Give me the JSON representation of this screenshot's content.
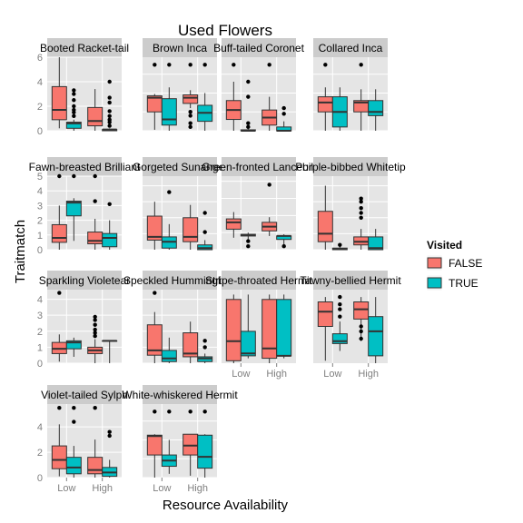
{
  "chart_data": {
    "type": "boxplot",
    "title": "Used Flowers",
    "xlabel": "Resource Availability",
    "ylabel": "Traitmatch",
    "categories": [
      "Low",
      "High"
    ],
    "legend": {
      "title": "Visited",
      "placement": "right",
      "entries": [
        {
          "label": "FALSE",
          "color": "#F8766D"
        },
        {
          "label": "TRUE",
          "color": "#00BFC4"
        }
      ]
    },
    "colors": {
      "FALSE": "#F8766D",
      "TRUE": "#00BFC4",
      "panel_bg": "#E5E5E5",
      "strip_bg": "#CCCCCC",
      "grid": "#FFFFFF"
    },
    "panels": [
      {
        "name": "Booted Racket-tail",
        "ylim": [
          0,
          6
        ],
        "yticks": [
          0,
          2,
          4,
          6
        ],
        "boxes": {
          "Low": {
            "FALSE": [
              0.2,
              0.9,
              1.7,
              3.6,
              6.0
            ],
            "TRUE": [
              0.0,
              0.2,
              0.6,
              0.7,
              0.9
            ]
          },
          "High": {
            "FALSE": [
              0.0,
              0.4,
              0.8,
              1.9,
              3.4
            ],
            "TRUE": [
              0.0,
              0.0,
              0.1,
              0.1,
              0.2
            ]
          }
        },
        "outliers": {
          "Low": {
            "FALSE": [],
            "TRUE": [
              1.2,
              1.5,
              1.7,
              2.0,
              2.5,
              3.0,
              3.3
            ]
          },
          "High": {
            "FALSE": [],
            "TRUE": [
              0.4,
              0.7,
              0.9,
              1.2,
              1.6,
              2.3,
              2.7,
              4.0
            ]
          }
        }
      },
      {
        "name": "Brown Inca",
        "ylim": [
          0,
          3.9
        ],
        "yticks": [
          0,
          1,
          2,
          3
        ],
        "boxes": {
          "Low": {
            "FALSE": [
              0.05,
              1.0,
              1.75,
              1.85,
              1.95
            ],
            "TRUE": [
              0.0,
              0.3,
              0.6,
              1.7,
              2.3
            ]
          },
          "High": {
            "FALSE": [
              1.2,
              1.45,
              1.75,
              1.9,
              2.15
            ],
            "TRUE": [
              0.0,
              0.5,
              0.95,
              1.35,
              2.0
            ]
          }
        },
        "outliers": {
          "Low": {
            "FALSE": [
              3.5
            ],
            "TRUE": [
              3.5
            ]
          },
          "High": {
            "FALSE": [
              0.2,
              0.4,
              0.8,
              1.0,
              3.5
            ],
            "TRUE": [
              3.5
            ]
          }
        }
      },
      {
        "name": "Buff-tailed Coronet",
        "ylim": [
          0,
          3.9
        ],
        "yticks": [
          0,
          1,
          2,
          3
        ],
        "boxes": {
          "Low": {
            "FALSE": [
              0.0,
              0.6,
              1.1,
              1.6,
              2.6
            ],
            "TRUE": [
              0.0,
              0.0,
              0.0,
              0.05,
              0.1
            ]
          },
          "High": {
            "FALSE": [
              0.0,
              0.3,
              0.7,
              1.1,
              1.8
            ],
            "TRUE": [
              0.0,
              0.0,
              0.0,
              0.2,
              0.5
            ]
          }
        },
        "outliers": {
          "Low": {
            "FALSE": [
              3.5
            ],
            "TRUE": [
              0.2,
              0.4,
              1.8,
              2.6
            ]
          },
          "High": {
            "FALSE": [
              3.5
            ],
            "TRUE": [
              0.9,
              1.2
            ]
          }
        }
      },
      {
        "name": "Collared Inca",
        "ylim": [
          0,
          3.9
        ],
        "yticks": [
          0,
          1,
          2,
          3
        ],
        "boxes": {
          "Low": {
            "FALSE": [
              0.0,
              1.0,
              1.5,
              1.8,
              2.3
            ],
            "TRUE": [
              0.0,
              0.2,
              1.0,
              1.8,
              2.3
            ]
          },
          "High": {
            "FALSE": [
              0.0,
              1.0,
              1.5,
              1.6,
              2.2
            ],
            "TRUE": [
              0.0,
              0.8,
              1.0,
              1.6,
              2.2
            ]
          }
        },
        "outliers": {
          "Low": {
            "FALSE": [
              3.5
            ],
            "TRUE": []
          },
          "High": {
            "FALSE": [
              3.5
            ],
            "TRUE": []
          }
        }
      },
      {
        "name": "Fawn-breasted Brilliant",
        "ylim": [
          0,
          5
        ],
        "yticks": [
          0,
          1,
          2,
          3,
          4,
          5
        ],
        "boxes": {
          "Low": {
            "FALSE": [
              0.0,
              0.5,
              0.8,
              1.7,
              3.0
            ],
            "TRUE": [
              0.6,
              2.3,
              3.2,
              3.3,
              3.5
            ]
          },
          "High": {
            "FALSE": [
              0.0,
              0.4,
              0.6,
              1.2,
              2.1
            ],
            "TRUE": [
              0.0,
              0.2,
              0.8,
              1.1,
              2.0
            ]
          }
        },
        "outliers": {
          "Low": {
            "FALSE": [
              5.0
            ],
            "TRUE": [
              5.0
            ]
          },
          "High": {
            "FALSE": [
              3.3,
              5.0
            ],
            "TRUE": [
              3.1
            ]
          }
        }
      },
      {
        "name": "Gorgeted Sunangel",
        "ylim": [
          0,
          4.6
        ],
        "yticks": [
          0,
          1,
          2,
          3,
          4
        ],
        "boxes": {
          "Low": {
            "FALSE": [
              0.0,
              0.6,
              0.8,
              2.1,
              3.0
            ],
            "TRUE": [
              0.0,
              0.1,
              0.5,
              0.8,
              1.6
            ]
          },
          "High": {
            "FALSE": [
              0.0,
              0.5,
              0.8,
              2.0,
              2.8
            ],
            "TRUE": [
              0.0,
              0.0,
              0.1,
              0.3,
              0.6
            ]
          }
        },
        "outliers": {
          "Low": {
            "FALSE": [],
            "TRUE": [
              3.6
            ]
          },
          "High": {
            "FALSE": [],
            "TRUE": [
              1.1,
              2.3
            ]
          }
        }
      },
      {
        "name": "Green-fronted Lancebill",
        "ylim": [
          0,
          4.3
        ],
        "yticks": [
          0,
          1,
          2,
          3,
          4
        ],
        "boxes": {
          "Low": {
            "FALSE": [
              0.7,
              1.2,
              1.6,
              1.8,
              2.2
            ],
            "TRUE": [
              0.6,
              0.8,
              0.85,
              0.9,
              1.0
            ]
          },
          "High": {
            "FALSE": [
              0.8,
              1.1,
              1.35,
              1.6,
              1.9
            ],
            "TRUE": [
              0.2,
              0.6,
              0.8,
              0.8,
              0.9
            ]
          }
        },
        "outliers": {
          "Low": {
            "FALSE": [],
            "TRUE": [
              0.2,
              0.5
            ]
          },
          "High": {
            "FALSE": [
              3.8
            ],
            "TRUE": [
              0.2
            ]
          }
        }
      },
      {
        "name": "Purple-bibbed Whitetip",
        "ylim": [
          0,
          4.6
        ],
        "yticks": [
          0,
          1,
          2,
          3,
          4
        ],
        "boxes": {
          "Low": {
            "FALSE": [
              0.0,
              0.5,
              1.0,
              2.4,
              4.0
            ],
            "TRUE": [
              0.0,
              0.0,
              0.05,
              0.1,
              0.2
            ]
          },
          "High": {
            "FALSE": [
              0.0,
              0.3,
              0.5,
              0.8,
              1.3
            ],
            "TRUE": [
              0.0,
              0.0,
              0.1,
              0.8,
              1.3
            ]
          }
        },
        "outliers": {
          "Low": {
            "FALSE": [],
            "TRUE": [
              0.3
            ]
          },
          "High": {
            "FALSE": [
              2.0,
              2.3,
              2.6,
              3.0,
              3.2
            ],
            "TRUE": []
          }
        }
      },
      {
        "name": "Sparkling Violetear",
        "ylim": [
          0,
          4.6
        ],
        "yticks": [
          0,
          1,
          2,
          3,
          4
        ],
        "boxes": {
          "Low": {
            "FALSE": [
              0.1,
              0.6,
              0.9,
              1.3,
              1.8
            ],
            "TRUE": [
              0.4,
              0.9,
              1.3,
              1.4,
              1.6
            ]
          },
          "High": {
            "FALSE": [
              0.0,
              0.6,
              0.8,
              1.0,
              1.5
            ],
            "TRUE": [
              0.0,
              1.4,
              1.4,
              1.4,
              1.4
            ]
          }
        },
        "outliers": {
          "Low": {
            "FALSE": [
              4.4
            ],
            "TRUE": []
          },
          "High": {
            "FALSE": [
              1.7,
              1.9,
              2.1,
              2.4,
              2.7,
              2.9
            ],
            "TRUE": []
          }
        }
      },
      {
        "name": "Speckled Hummingbird",
        "ylim": [
          0,
          4.6
        ],
        "yticks": [
          0,
          1,
          2,
          3,
          4
        ],
        "boxes": {
          "Low": {
            "FALSE": [
              0.0,
              0.5,
              0.8,
              2.4,
              3.2
            ],
            "TRUE": [
              0.0,
              0.1,
              0.3,
              0.8,
              1.6
            ]
          },
          "High": {
            "FALSE": [
              0.0,
              0.4,
              0.6,
              1.9,
              2.6
            ],
            "TRUE": [
              0.0,
              0.1,
              0.3,
              0.4,
              0.6
            ]
          }
        },
        "outliers": {
          "Low": {
            "FALSE": [
              4.4
            ],
            "TRUE": []
          },
          "High": {
            "FALSE": [],
            "TRUE": [
              1.0,
              1.4
            ]
          }
        }
      },
      {
        "name": "Stripe-throated Hermit",
        "ylim": [
          0,
          3.0
        ],
        "yticks": [],
        "boxes": {
          "Low": {
            "FALSE": [
              0.0,
              0.1,
              0.9,
              2.6,
              2.8
            ],
            "TRUE": [
              0.2,
              0.3,
              0.4,
              1.3,
              2.8
            ]
          },
          "High": {
            "FALSE": [
              0.0,
              0.2,
              0.6,
              2.6,
              2.8
            ],
            "TRUE": [
              0.2,
              0.3,
              0.3,
              2.6,
              2.8
            ]
          }
        },
        "outliers": {
          "Low": {
            "FALSE": [],
            "TRUE": []
          },
          "High": {
            "FALSE": [],
            "TRUE": []
          }
        }
      },
      {
        "name": "Tawny-bellied Hermit",
        "ylim": [
          0,
          3.0
        ],
        "yticks": [],
        "boxes": {
          "Low": {
            "FALSE": [
              0.1,
              1.5,
              2.1,
              2.5,
              2.7
            ],
            "TRUE": [
              0.5,
              0.8,
              0.9,
              1.2,
              1.7
            ]
          },
          "High": {
            "FALSE": [
              0.9,
              1.8,
              2.2,
              2.5,
              2.7
            ],
            "TRUE": [
              0.0,
              0.3,
              1.3,
              1.9,
              2.7
            ]
          }
        },
        "outliers": {
          "Low": {
            "FALSE": [],
            "TRUE": [
              1.9,
              2.2,
              2.4,
              2.7
            ]
          },
          "High": {
            "FALSE": [
              1.0,
              1.3,
              1.5
            ],
            "TRUE": []
          }
        }
      },
      {
        "name": "Violet-tailed Sylph",
        "ylim": [
          0,
          5.8
        ],
        "yticks": [
          0,
          2,
          4
        ],
        "boxes": {
          "Low": {
            "FALSE": [
              0.1,
              0.7,
              1.4,
              2.5,
              4.2
            ],
            "TRUE": [
              0.0,
              0.3,
              0.8,
              1.6,
              2.5
            ]
          },
          "High": {
            "FALSE": [
              0.0,
              0.3,
              0.6,
              1.6,
              3.0
            ],
            "TRUE": [
              0.0,
              0.1,
              0.4,
              0.8,
              1.4
            ]
          }
        },
        "outliers": {
          "Low": {
            "FALSE": [
              5.5
            ],
            "TRUE": [
              4.4,
              5.5
            ]
          },
          "High": {
            "FALSE": [
              5.5
            ],
            "TRUE": [
              3.3,
              3.6
            ]
          }
        }
      },
      {
        "name": "White-whiskered Hermit",
        "ylim": [
          0,
          3.9
        ],
        "yticks": [
          0,
          1,
          2,
          3
        ],
        "boxes": {
          "Low": {
            "FALSE": [
              0.0,
              1.2,
              2.2,
              2.25,
              2.3
            ],
            "TRUE": [
              0.2,
              0.6,
              0.9,
              1.2,
              2.0
            ]
          },
          "High": {
            "FALSE": [
              0.1,
              1.2,
              1.7,
              2.3,
              2.3
            ],
            "TRUE": [
              0.0,
              0.5,
              1.1,
              2.25,
              2.3
            ]
          }
        },
        "outliers": {
          "Low": {
            "FALSE": [
              3.5
            ],
            "TRUE": [
              3.5
            ]
          },
          "High": {
            "FALSE": [
              3.5
            ],
            "TRUE": [
              3.5
            ]
          }
        }
      }
    ]
  }
}
